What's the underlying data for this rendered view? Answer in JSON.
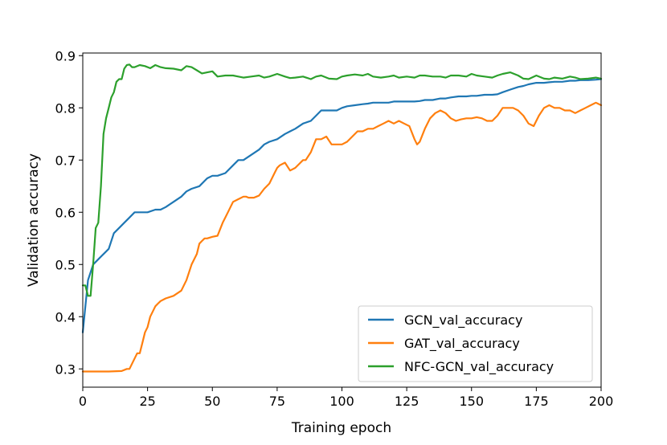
{
  "chart_data": {
    "type": "line",
    "title": "",
    "xlabel": "Training epoch",
    "ylabel": "Validation accuracy",
    "xlim": [
      0,
      200
    ],
    "ylim": [
      0.265,
      0.905
    ],
    "xticks": [
      0,
      25,
      50,
      75,
      100,
      125,
      150,
      175,
      200
    ],
    "yticks": [
      0.3,
      0.4,
      0.5,
      0.6,
      0.7,
      0.8,
      0.9
    ],
    "xtick_labels": [
      "0",
      "25",
      "50",
      "75",
      "100",
      "125",
      "150",
      "175",
      "200"
    ],
    "ytick_labels": [
      "0.3",
      "0.4",
      "0.5",
      "0.6",
      "0.7",
      "0.8",
      "0.9"
    ],
    "grid": false,
    "legend_position": "lower-right",
    "series": [
      {
        "name": "GCN_val_accuracy",
        "color": "#1f77b4",
        "x": [
          0,
          2,
          4,
          6,
          8,
          10,
          12,
          14,
          16,
          18,
          20,
          22,
          25,
          28,
          30,
          32,
          35,
          38,
          40,
          42,
          45,
          48,
          50,
          52,
          55,
          58,
          60,
          62,
          65,
          68,
          70,
          72,
          75,
          78,
          80,
          82,
          85,
          88,
          90,
          92,
          95,
          98,
          100,
          102,
          105,
          108,
          110,
          112,
          115,
          118,
          120,
          122,
          125,
          128,
          130,
          132,
          135,
          138,
          140,
          142,
          145,
          148,
          150,
          152,
          155,
          158,
          160,
          162,
          165,
          168,
          170,
          172,
          175,
          178,
          180,
          182,
          185,
          188,
          190,
          192,
          195,
          198,
          200
        ],
        "y": [
          0.37,
          0.47,
          0.5,
          0.51,
          0.52,
          0.53,
          0.56,
          0.57,
          0.58,
          0.59,
          0.6,
          0.6,
          0.6,
          0.605,
          0.605,
          0.61,
          0.62,
          0.63,
          0.64,
          0.645,
          0.65,
          0.665,
          0.67,
          0.67,
          0.675,
          0.69,
          0.7,
          0.7,
          0.71,
          0.72,
          0.73,
          0.735,
          0.74,
          0.75,
          0.755,
          0.76,
          0.77,
          0.775,
          0.785,
          0.795,
          0.795,
          0.795,
          0.8,
          0.803,
          0.805,
          0.807,
          0.808,
          0.81,
          0.81,
          0.81,
          0.812,
          0.812,
          0.812,
          0.812,
          0.813,
          0.815,
          0.815,
          0.818,
          0.818,
          0.82,
          0.822,
          0.822,
          0.823,
          0.823,
          0.825,
          0.825,
          0.826,
          0.83,
          0.835,
          0.84,
          0.842,
          0.845,
          0.848,
          0.848,
          0.849,
          0.85,
          0.85,
          0.852,
          0.852,
          0.853,
          0.853,
          0.854,
          0.855
        ]
      },
      {
        "name": "GAT_val_accuracy",
        "color": "#ff7f0e",
        "x": [
          0,
          5,
          10,
          15,
          17,
          18,
          19,
          20,
          21,
          22,
          23,
          24,
          25,
          26,
          27,
          28,
          29,
          30,
          32,
          35,
          38,
          40,
          42,
          44,
          45,
          46,
          47,
          48,
          50,
          52,
          54,
          55,
          56,
          57,
          58,
          60,
          62,
          63,
          64,
          65,
          66,
          67,
          68,
          70,
          72,
          74,
          75,
          76,
          78,
          80,
          82,
          84,
          85,
          86,
          88,
          90,
          92,
          94,
          96,
          98,
          100,
          102,
          104,
          106,
          108,
          110,
          112,
          114,
          116,
          118,
          120,
          122,
          124,
          126,
          128,
          129,
          130,
          132,
          134,
          136,
          138,
          140,
          142,
          144,
          146,
          148,
          150,
          152,
          154,
          156,
          158,
          160,
          162,
          164,
          166,
          168,
          170,
          172,
          174,
          176,
          178,
          180,
          182,
          184,
          186,
          188,
          190,
          192,
          194,
          196,
          198,
          200
        ],
        "y": [
          0.295,
          0.295,
          0.295,
          0.296,
          0.3,
          0.3,
          0.31,
          0.32,
          0.33,
          0.33,
          0.35,
          0.37,
          0.38,
          0.4,
          0.41,
          0.42,
          0.425,
          0.43,
          0.435,
          0.44,
          0.45,
          0.47,
          0.5,
          0.52,
          0.54,
          0.545,
          0.55,
          0.55,
          0.553,
          0.555,
          0.58,
          0.59,
          0.6,
          0.61,
          0.62,
          0.625,
          0.63,
          0.63,
          0.628,
          0.628,
          0.628,
          0.63,
          0.632,
          0.645,
          0.655,
          0.675,
          0.685,
          0.69,
          0.695,
          0.68,
          0.685,
          0.695,
          0.7,
          0.7,
          0.715,
          0.74,
          0.74,
          0.745,
          0.73,
          0.73,
          0.73,
          0.735,
          0.745,
          0.755,
          0.755,
          0.76,
          0.76,
          0.765,
          0.77,
          0.775,
          0.77,
          0.775,
          0.77,
          0.765,
          0.74,
          0.73,
          0.735,
          0.76,
          0.78,
          0.79,
          0.795,
          0.79,
          0.78,
          0.775,
          0.778,
          0.78,
          0.78,
          0.782,
          0.78,
          0.775,
          0.775,
          0.785,
          0.8,
          0.8,
          0.8,
          0.795,
          0.785,
          0.77,
          0.765,
          0.785,
          0.8,
          0.805,
          0.8,
          0.8,
          0.795,
          0.795,
          0.79,
          0.795,
          0.8,
          0.805,
          0.81,
          0.805
        ]
      },
      {
        "name": "NFC-GCN_val_accuracy",
        "color": "#2ca02c",
        "x": [
          0,
          1,
          2,
          3,
          4,
          5,
          6,
          7,
          8,
          9,
          10,
          11,
          12,
          13,
          14,
          15,
          16,
          17,
          18,
          19,
          20,
          22,
          24,
          26,
          28,
          30,
          32,
          35,
          38,
          40,
          42,
          44,
          46,
          48,
          50,
          52,
          55,
          58,
          60,
          62,
          65,
          68,
          70,
          72,
          75,
          78,
          80,
          82,
          85,
          88,
          90,
          92,
          95,
          98,
          100,
          102,
          105,
          108,
          110,
          112,
          115,
          118,
          120,
          122,
          125,
          128,
          130,
          132,
          135,
          138,
          140,
          142,
          145,
          148,
          150,
          152,
          155,
          158,
          160,
          162,
          165,
          168,
          170,
          172,
          175,
          178,
          180,
          182,
          185,
          188,
          190,
          192,
          195,
          198,
          200
        ],
        "y": [
          0.46,
          0.46,
          0.44,
          0.44,
          0.5,
          0.57,
          0.58,
          0.65,
          0.75,
          0.78,
          0.8,
          0.82,
          0.83,
          0.85,
          0.855,
          0.855,
          0.875,
          0.882,
          0.883,
          0.878,
          0.878,
          0.882,
          0.88,
          0.876,
          0.882,
          0.878,
          0.876,
          0.875,
          0.872,
          0.88,
          0.878,
          0.872,
          0.866,
          0.868,
          0.87,
          0.86,
          0.862,
          0.862,
          0.86,
          0.858,
          0.86,
          0.862,
          0.858,
          0.86,
          0.865,
          0.86,
          0.857,
          0.858,
          0.86,
          0.855,
          0.86,
          0.862,
          0.856,
          0.855,
          0.86,
          0.862,
          0.864,
          0.862,
          0.865,
          0.86,
          0.858,
          0.86,
          0.862,
          0.858,
          0.86,
          0.858,
          0.862,
          0.862,
          0.86,
          0.86,
          0.858,
          0.862,
          0.862,
          0.86,
          0.865,
          0.862,
          0.86,
          0.858,
          0.862,
          0.865,
          0.868,
          0.862,
          0.856,
          0.855,
          0.862,
          0.856,
          0.855,
          0.858,
          0.856,
          0.86,
          0.858,
          0.855,
          0.856,
          0.858,
          0.856
        ]
      }
    ]
  }
}
